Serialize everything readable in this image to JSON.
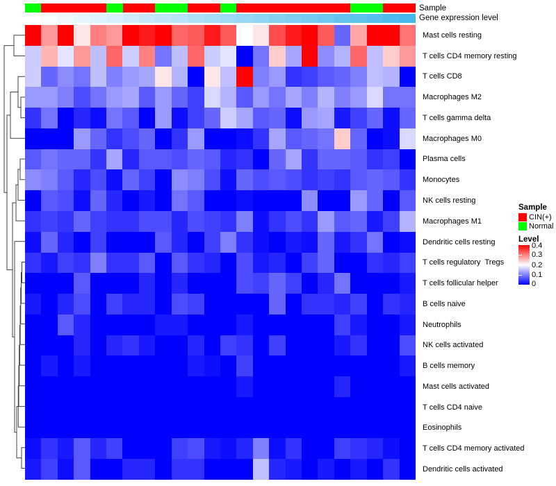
{
  "annotation": {
    "sample_label": "Sample",
    "gene_expression_label": "Gene expression level",
    "sample_class": [
      "Normal",
      "CIN(+)",
      "CIN(+)",
      "CIN(+)",
      "CIN(+)",
      "Normal",
      "CIN(+)",
      "CIN(+)",
      "Normal",
      "Normal",
      "CIN(+)",
      "CIN(+)",
      "Normal",
      "CIN(+)",
      "CIN(+)",
      "CIN(+)",
      "CIN(+)",
      "CIN(+)",
      "CIN(+)",
      "CIN(+)",
      "Normal",
      "Normal",
      "CIN(+)",
      "CIN(+)"
    ],
    "class_colors": {
      "CIN(+)": "#ff0000",
      "Normal": "#00ff00"
    },
    "gene_expression_gradient": {
      "start": "#ffffff",
      "end": "#45b8ec"
    }
  },
  "legend": {
    "sample": {
      "title": "Sample",
      "items": [
        {
          "label": "CIN(+)",
          "color": "#ff0000"
        },
        {
          "label": "Normal",
          "color": "#00ff00"
        }
      ]
    },
    "level": {
      "title": "Level",
      "ticks": [
        "0.4",
        "0.3",
        "0.2",
        "0.1",
        "0"
      ],
      "min": 0,
      "max": 0.4
    }
  },
  "chart_data": {
    "type": "heatmap",
    "title": "",
    "columns": 24,
    "column_labels_shown": false,
    "value_range": [
      0,
      0.4
    ],
    "colormap": {
      "low": "#0000ff",
      "mid": "#ffffff",
      "high": "#ff0000",
      "midpoint": 0.2
    },
    "rows": [
      "Mast cells resting",
      "T cells CD4 memory resting",
      "T cells CD8",
      "Macrophages M2",
      "T cells gamma delta",
      "Macrophages M0",
      "Plasma cells",
      "Monocytes",
      "NK cells resting",
      "Macrophages M1",
      "Dendritic cells resting",
      "T cells regulatory  Tregs",
      "T cells follicular helper",
      "B cells naive",
      "Neutrophils",
      "NK cells activated",
      "B cells memory",
      "Mast cells activated",
      "T cells CD4 naive",
      "Eosinophils",
      "T cells CD4 memory activated",
      "Dendritic cells activated"
    ],
    "values": [
      [
        0.4,
        0.28,
        0.4,
        0.22,
        0.3,
        0.28,
        0.4,
        0.38,
        0.4,
        0.32,
        0.33,
        0.38,
        0.33,
        0.2,
        0.22,
        0.34,
        0.38,
        0.4,
        0.33,
        0.08,
        0.27,
        0.4,
        0.4,
        0.31
      ],
      [
        0.16,
        0.26,
        0.18,
        0.28,
        0.15,
        0.32,
        0.16,
        0.3,
        0.09,
        0.15,
        0.32,
        0.16,
        0.18,
        0.0,
        0.09,
        0.24,
        0.13,
        0.4,
        0.11,
        0.14,
        0.32,
        0.15,
        0.24,
        0.28
      ],
      [
        0.16,
        0.08,
        0.11,
        0.09,
        0.15,
        0.1,
        0.12,
        0.13,
        0.22,
        0.14,
        0.0,
        0.22,
        0.15,
        0.4,
        0.1,
        0.12,
        0.04,
        0.05,
        0.07,
        0.08,
        0.1,
        0.15,
        0.14,
        0.0
      ],
      [
        0.12,
        0.12,
        0.1,
        0.06,
        0.09,
        0.12,
        0.13,
        0.07,
        0.12,
        0.08,
        0.05,
        0.17,
        0.14,
        0.07,
        0.12,
        0.09,
        0.13,
        0.1,
        0.14,
        0.1,
        0.12,
        0.17,
        0.09,
        0.09
      ],
      [
        0.04,
        0.09,
        0.0,
        0.03,
        0.01,
        0.09,
        0.07,
        0.0,
        0.12,
        0.01,
        0.05,
        0.08,
        0.16,
        0.13,
        0.07,
        0.08,
        0.01,
        0.12,
        0.13,
        0.02,
        0.05,
        0.08,
        0.01,
        0.08
      ],
      [
        0.0,
        0.0,
        0.0,
        0.12,
        0.08,
        0.04,
        0.06,
        0.08,
        0.0,
        0.04,
        0.12,
        0.0,
        0.0,
        0.01,
        0.04,
        0.13,
        0.07,
        0.08,
        0.09,
        0.24,
        0.08,
        0.0,
        0.01,
        0.17
      ],
      [
        0.07,
        0.09,
        0.08,
        0.08,
        0.04,
        0.13,
        0.03,
        0.07,
        0.07,
        0.06,
        0.08,
        0.07,
        0.03,
        0.04,
        0.0,
        0.08,
        0.13,
        0.04,
        0.08,
        0.08,
        0.07,
        0.04,
        0.05,
        0.0
      ],
      [
        0.11,
        0.1,
        0.07,
        0.03,
        0.06,
        0.01,
        0.08,
        0.05,
        0.0,
        0.11,
        0.1,
        0.06,
        0.01,
        0.08,
        0.06,
        0.07,
        0.06,
        0.04,
        0.05,
        0.04,
        0.07,
        0.08,
        0.07,
        0.04
      ],
      [
        0.0,
        0.07,
        0.06,
        0.01,
        0.08,
        0.03,
        0.0,
        0.02,
        0.0,
        0.09,
        0.07,
        0.0,
        0.0,
        0.01,
        0.0,
        0.0,
        0.0,
        0.11,
        0.0,
        0.0,
        0.12,
        0.08,
        0.0,
        0.07
      ],
      [
        0.04,
        0.05,
        0.04,
        0.08,
        0.05,
        0.04,
        0.04,
        0.06,
        0.06,
        0.03,
        0.06,
        0.05,
        0.04,
        0.1,
        0.01,
        0.04,
        0.06,
        0.04,
        0.12,
        0.07,
        0.08,
        0.02,
        0.05,
        0.14
      ],
      [
        0.01,
        0.08,
        0.03,
        0.0,
        0.05,
        0.0,
        0.0,
        0.0,
        0.07,
        0.03,
        0.0,
        0.05,
        0.1,
        0.04,
        0.01,
        0.0,
        0.02,
        0.01,
        0.08,
        0.02,
        0.04,
        0.09,
        0.0,
        0.01
      ],
      [
        0.04,
        0.02,
        0.05,
        0.04,
        0.1,
        0.04,
        0.04,
        0.07,
        0.0,
        0.07,
        0.04,
        0.03,
        0.0,
        0.06,
        0.02,
        0.03,
        0.0,
        0.05,
        0.08,
        0.0,
        0.0,
        0.04,
        0.03,
        0.05
      ],
      [
        0.0,
        0.0,
        0.0,
        0.07,
        0.0,
        0.0,
        0.0,
        0.03,
        0.0,
        0.03,
        0.0,
        0.0,
        0.0,
        0.06,
        0.05,
        0.08,
        0.05,
        0.0,
        0.03,
        0.09,
        0.0,
        0.0,
        0.0,
        0.02
      ],
      [
        0.02,
        0.0,
        0.03,
        0.06,
        0.0,
        0.05,
        0.03,
        0.03,
        0.0,
        0.06,
        0.05,
        0.0,
        0.0,
        0.0,
        0.0,
        0.08,
        0.0,
        0.04,
        0.04,
        0.03,
        0.05,
        0.0,
        0.04,
        0.03
      ],
      [
        0.0,
        0.0,
        0.07,
        0.03,
        0.0,
        0.0,
        0.0,
        0.0,
        0.02,
        0.02,
        0.0,
        0.0,
        0.0,
        0.02,
        0.0,
        0.0,
        0.0,
        0.0,
        0.0,
        0.05,
        0.02,
        0.0,
        0.0,
        0.02
      ],
      [
        0.0,
        0.0,
        0.0,
        0.03,
        0.0,
        0.03,
        0.04,
        0.02,
        0.0,
        0.0,
        0.03,
        0.0,
        0.05,
        0.04,
        0.0,
        0.05,
        0.0,
        0.0,
        0.0,
        0.02,
        0.04,
        0.0,
        0.0,
        0.06
      ],
      [
        0.0,
        0.02,
        0.0,
        0.02,
        0.0,
        0.0,
        0.0,
        0.0,
        0.0,
        0.0,
        0.02,
        0.01,
        0.0,
        0.05,
        0.0,
        0.0,
        0.0,
        0.0,
        0.0,
        0.0,
        0.0,
        0.0,
        0.0,
        0.02
      ],
      [
        0.0,
        0.0,
        0.0,
        0.0,
        0.0,
        0.0,
        0.0,
        0.0,
        0.0,
        0.0,
        0.0,
        0.0,
        0.0,
        0.02,
        0.0,
        0.0,
        0.0,
        0.0,
        0.0,
        0.03,
        0.0,
        0.0,
        0.0,
        0.0
      ],
      [
        0.0,
        0.0,
        0.0,
        0.0,
        0.0,
        0.0,
        0.0,
        0.0,
        0.0,
        0.0,
        0.0,
        0.0,
        0.0,
        0.0,
        0.0,
        0.0,
        0.0,
        0.0,
        0.0,
        0.0,
        0.0,
        0.0,
        0.0,
        0.0
      ],
      [
        0.0,
        0.0,
        0.0,
        0.0,
        0.0,
        0.0,
        0.0,
        0.0,
        0.0,
        0.0,
        0.0,
        0.0,
        0.0,
        0.0,
        0.0,
        0.0,
        0.0,
        0.0,
        0.0,
        0.0,
        0.0,
        0.0,
        0.0,
        0.0
      ],
      [
        0.01,
        0.04,
        0.02,
        0.07,
        0.03,
        0.05,
        0.0,
        0.0,
        0.0,
        0.05,
        0.06,
        0.02,
        0.01,
        0.03,
        0.1,
        0.01,
        0.04,
        0.0,
        0.0,
        0.05,
        0.04,
        0.03,
        0.01,
        0.0
      ],
      [
        0.02,
        0.05,
        0.01,
        0.07,
        0.0,
        0.0,
        0.03,
        0.03,
        0.0,
        0.04,
        0.04,
        0.0,
        0.0,
        0.0,
        0.15,
        0.03,
        0.02,
        0.0,
        0.02,
        0.0,
        0.02,
        0.0,
        0.04,
        0.0
      ]
    ],
    "top_annotations": {
      "Sample": "categorical red/green bar (CIN(+) / Normal)",
      "Gene expression level": "continuous white-to-skyblue bar increasing left to right"
    },
    "legend_position": "right",
    "row_dendrogram": true
  }
}
